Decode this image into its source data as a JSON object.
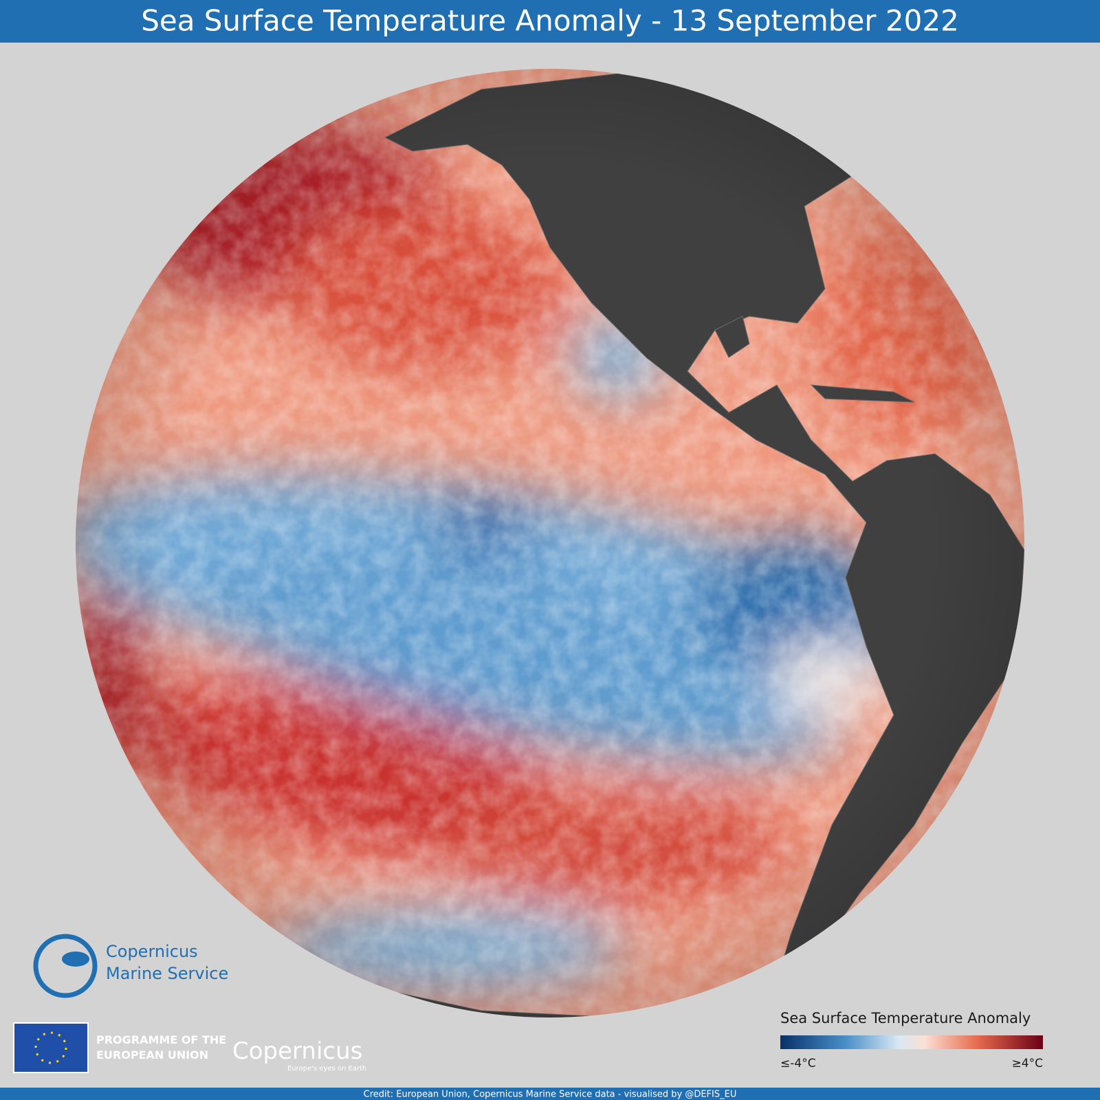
{
  "header": {
    "title": "Sea Surface Temperature Anomaly - 13 September 2022"
  },
  "logos": {
    "marine_service_line1": "Copernicus",
    "marine_service_line2": "Marine Service",
    "eu_line1": "PROGRAMME OF THE",
    "eu_line2": "EUROPEAN UNION",
    "copernicus": "Copernicus",
    "copernicus_tagline": "Europe's eyes on Earth"
  },
  "legend": {
    "title": "Sea Surface Temperature Anomaly",
    "min_label": "≤-4°C",
    "max_label": "≥4°C"
  },
  "footer": {
    "credit": "Credit: European Union, Copernicus Marine Service data - visualised by @DEFIS_EU"
  }
}
